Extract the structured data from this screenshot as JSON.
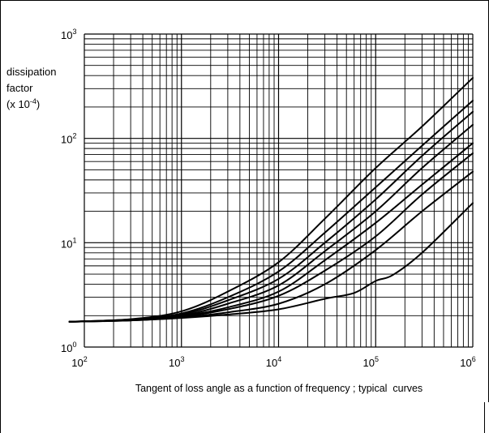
{
  "chart_data": {
    "type": "line",
    "title": "",
    "caption": "Tangent of loss angle as a function of frequency ; typical  curves",
    "ylabel_lines": [
      "dissipation",
      "factor",
      "(x 10",
      "-4",
      ")"
    ],
    "xlabel": "",
    "x_scale": "log",
    "y_scale": "log",
    "xlim": [
      100,
      1000000
    ],
    "ylim": [
      1,
      1000
    ],
    "grid": true,
    "legend": "none",
    "line_color": "#000000",
    "x_ticks": [
      {
        "base": "10",
        "exp": "2"
      },
      {
        "base": "10",
        "exp": "3"
      },
      {
        "base": "10",
        "exp": "4"
      },
      {
        "base": "10",
        "exp": "5"
      },
      {
        "base": "10",
        "exp": "6"
      }
    ],
    "y_ticks": [
      {
        "base": "10",
        "exp": "0"
      },
      {
        "base": "10",
        "exp": "1"
      },
      {
        "base": "10",
        "exp": "2"
      },
      {
        "base": "10",
        "exp": "3"
      }
    ],
    "series": [
      {
        "x": [
          70,
          300,
          1000,
          3000,
          10000,
          30000,
          100000,
          300000,
          1000000
        ],
        "y": [
          1.75,
          1.85,
          2.2,
          3.4,
          6.5,
          17,
          52,
          130,
          380
        ]
      },
      {
        "x": [
          70,
          300,
          1000,
          3000,
          10000,
          30000,
          100000,
          300000,
          1000000
        ],
        "y": [
          1.75,
          1.84,
          2.1,
          3.0,
          5.3,
          12.5,
          34,
          85,
          230
        ]
      },
      {
        "x": [
          70,
          300,
          1000,
          3000,
          10000,
          30000,
          100000,
          300000,
          1000000
        ],
        "y": [
          1.75,
          1.83,
          2.05,
          2.8,
          4.5,
          10,
          26,
          68,
          180
        ]
      },
      {
        "x": [
          70,
          300,
          1000,
          3000,
          10000,
          30000,
          100000,
          300000,
          1000000
        ],
        "y": [
          1.75,
          1.82,
          2.0,
          2.6,
          3.9,
          8.3,
          20,
          52,
          135
        ]
      },
      {
        "x": [
          70,
          300,
          1000,
          3000,
          10000,
          30000,
          100000,
          300000,
          1000000
        ],
        "y": [
          1.75,
          1.81,
          1.97,
          2.4,
          3.4,
          6.8,
          15.5,
          36,
          90
        ]
      },
      {
        "x": [
          70,
          300,
          1000,
          3000,
          10000,
          30000,
          100000,
          300000,
          1000000
        ],
        "y": [
          1.75,
          1.8,
          1.95,
          2.3,
          3.1,
          5.4,
          11.5,
          29,
          72
        ]
      },
      {
        "x": [
          70,
          300,
          1000,
          3000,
          10000,
          30000,
          100000,
          300000,
          1000000
        ],
        "y": [
          1.75,
          1.8,
          1.92,
          2.15,
          2.6,
          4.0,
          8.5,
          20,
          48
        ]
      },
      {
        "x": [
          70,
          300,
          1000,
          3000,
          10000,
          30000,
          60000,
          100000,
          150000,
          300000,
          1000000
        ],
        "y": [
          1.75,
          1.8,
          1.9,
          2.05,
          2.3,
          2.9,
          3.3,
          4.3,
          4.9,
          8.0,
          24
        ]
      }
    ]
  }
}
